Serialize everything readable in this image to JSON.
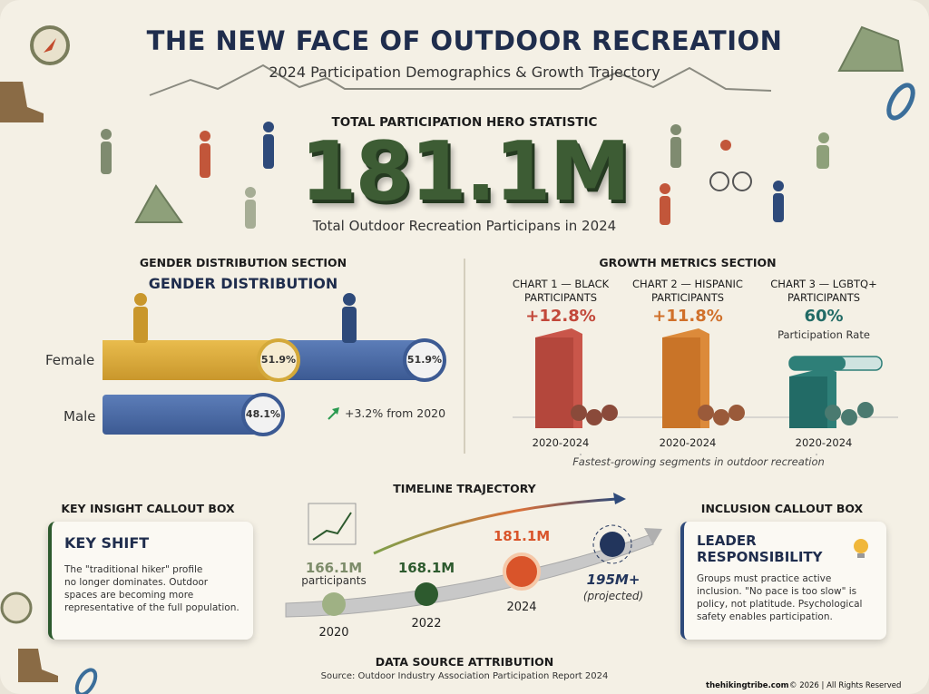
{
  "header": {
    "title": "THE NEW FACE OF OUTDOOR RECREATION",
    "subtitle": "2024 Participation Demographics & Growth Trajectory"
  },
  "hero": {
    "section_label": "TOTAL PARTICIPATION HERO STATISTIC",
    "value": "181.1M",
    "caption": "Total Outdoor Recreation Participans in 2024"
  },
  "gender": {
    "section_label": "GENDER DISTRIBUTION SECTION",
    "title": "GENDER DISTRIBUTION",
    "rows": [
      {
        "label": "Female",
        "value_labels": [
          "51.9%",
          "51.9%"
        ]
      },
      {
        "label": "Male",
        "value_labels": [
          "48.1%"
        ]
      }
    ],
    "change": "+3.2% from 2020"
  },
  "growth": {
    "section_label": "GROWTH METRICS SECTION",
    "charts": [
      {
        "title": [
          "CHART 1 — BLACK",
          "PARTICIPANTS"
        ],
        "value": "+12.8%",
        "period": "2020-2024"
      },
      {
        "title": [
          "CHART 2 — HISPANIC",
          "PARTICIPANTS"
        ],
        "value": "+11.8%",
        "period": "2020-2024"
      },
      {
        "title": [
          "CHART 3 — LGBTQ+",
          "PARTICIPANTS"
        ],
        "value": "60%",
        "note": "Participation Rate",
        "period": "2020-2024"
      }
    ],
    "caption": "Fastest-growing segments in outdoor recreation"
  },
  "key_insight": {
    "section_label": "KEY INSIGHT CALLOUT BOX",
    "title": "KEY SHIFT",
    "body": [
      "The \"traditional hiker\" profile",
      "no longer dominates. Outdoor",
      "spaces are becoming more",
      "representative of the full population."
    ]
  },
  "timeline": {
    "section_label": "TIMELINE TRAJECTORY",
    "points": [
      {
        "value": "166.1M",
        "note": "participants",
        "year": "2020"
      },
      {
        "value": "168.1M",
        "year": "2022"
      },
      {
        "value": "181.1M",
        "year": "2024"
      },
      {
        "value": "195M+",
        "note": "(projected)"
      }
    ]
  },
  "inclusion": {
    "section_label": "INCLUSION CALLOUT BOX",
    "title": [
      "LEADER",
      "RESPONSIBILITY"
    ],
    "body": [
      "Groups must practice active",
      "inclusion. \"No pace is too slow\" is",
      "policy, not platitude. Psychological",
      "safety enables participation."
    ]
  },
  "footer": {
    "section_label": "DATA SOURCE ATTRIBUTION",
    "source": "Source: Outdoor Industry Association Participation Report 2024",
    "credit_site": "thehikingtribe.com",
    "credit": "© 2026 | All Rights Reserved"
  }
}
